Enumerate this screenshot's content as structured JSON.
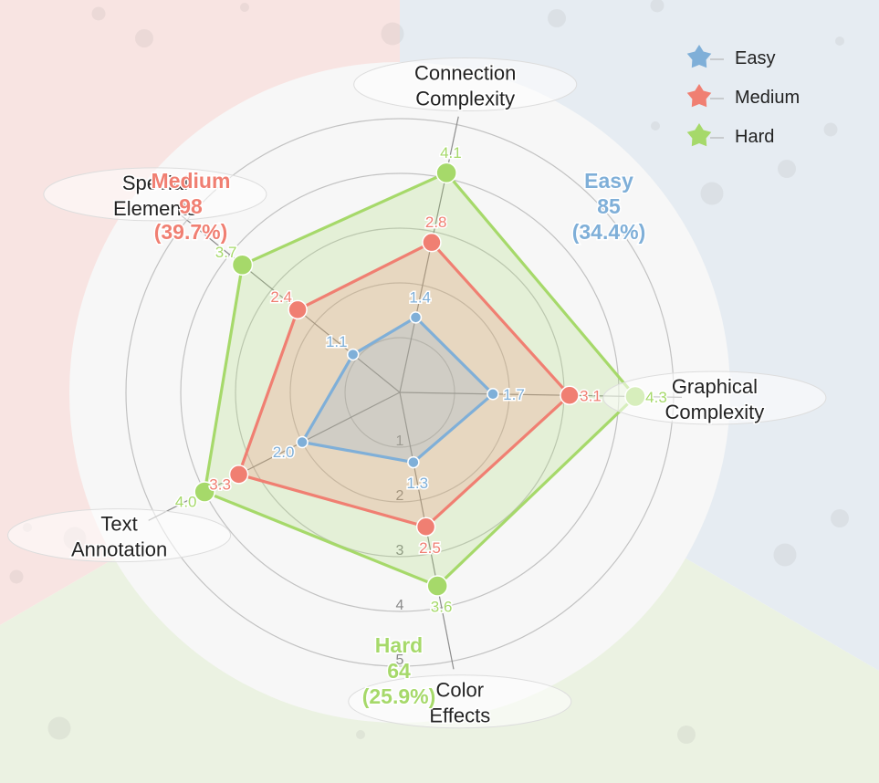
{
  "chart_data": {
    "type": "radar",
    "title": "",
    "axes": [
      {
        "key": "connection",
        "label": [
          "Connection",
          "Complexity"
        ]
      },
      {
        "key": "graphical",
        "label": [
          "Graphical",
          "Complexity"
        ]
      },
      {
        "key": "color",
        "label": [
          "Color",
          "Effects"
        ]
      },
      {
        "key": "text",
        "label": [
          "Text",
          "Annotation"
        ]
      },
      {
        "key": "special",
        "label": [
          "Special",
          "Elements"
        ]
      }
    ],
    "rings": [
      1,
      2,
      3,
      4,
      5
    ],
    "ring_tick_labels": [
      "1",
      "2",
      "3",
      "4",
      "5"
    ],
    "rmax": 5,
    "series": [
      {
        "name": "Easy",
        "color": "#7fafd8",
        "values": [
          1.4,
          1.7,
          1.3,
          2.0,
          1.1
        ],
        "value_labels": [
          "1.4",
          "1.7",
          "1.3",
          "2.0",
          "1.1"
        ]
      },
      {
        "name": "Medium",
        "color": "#f07f72",
        "values": [
          2.8,
          3.1,
          2.5,
          3.3,
          2.4
        ],
        "value_labels": [
          "2.8",
          "3.1",
          "2.5",
          "3.3",
          "2.4"
        ]
      },
      {
        "name": "Hard",
        "color": "#a6d96a",
        "values": [
          4.1,
          4.3,
          3.6,
          4.0,
          3.7
        ],
        "value_labels": [
          "4.1",
          "4.3",
          "3.6",
          "4.0",
          "3.7"
        ]
      }
    ],
    "shares": [
      {
        "series": "Easy",
        "count": "85",
        "percent": "(34.4%)"
      },
      {
        "series": "Medium",
        "count": "98",
        "percent": "(39.7%)"
      },
      {
        "series": "Hard",
        "count": "64",
        "percent": "(25.9%)"
      }
    ],
    "background_sectors": [
      {
        "series": "Easy",
        "color": "#e6ecf2"
      },
      {
        "series": "Medium",
        "color": "#f8e4e2"
      },
      {
        "series": "Hard",
        "color": "#ebf2e2"
      }
    ],
    "legend": {
      "position": "top-right",
      "entries": [
        "Easy",
        "Medium",
        "Hard"
      ]
    },
    "grid": true
  }
}
